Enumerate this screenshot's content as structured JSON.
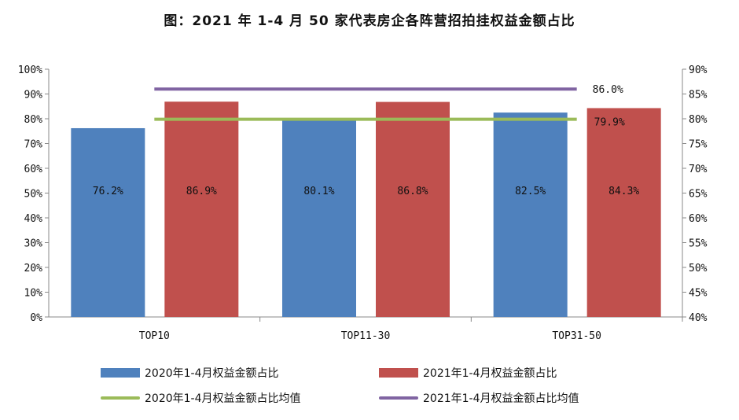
{
  "chart_data": {
    "type": "bar",
    "title": "图：2021 年 1-4 月 50 家代表房企各阵营招拍挂权益金额占比",
    "categories": [
      "TOP10",
      "TOP11-30",
      "TOP31-50"
    ],
    "series": [
      {
        "name": "2020年1-4月权益金额占比",
        "type": "bar",
        "axis": "left",
        "color": "#4f81bd",
        "values": [
          76.2,
          80.1,
          82.5
        ],
        "labels": [
          "76.2%",
          "80.1%",
          "82.5%"
        ]
      },
      {
        "name": "2021年1-4月权益金额占比",
        "type": "bar",
        "axis": "left",
        "color": "#c0504d",
        "values": [
          86.9,
          86.8,
          84.3
        ],
        "labels": [
          "86.9%",
          "86.8%",
          "84.3%"
        ]
      },
      {
        "name": "2020年1-4月权益金额占比均值",
        "type": "line",
        "axis": "right",
        "color": "#9bbb59",
        "value": 79.9,
        "label": "79.9%"
      },
      {
        "name": "2021年1-4月权益金额占比均值",
        "type": "line",
        "axis": "right",
        "color": "#8064a2",
        "value": 86.0,
        "label": "86.0%"
      }
    ],
    "ylim_left": [
      0,
      100
    ],
    "ylim_right": [
      40,
      90
    ],
    "yticks_left": [
      "0%",
      "10%",
      "20%",
      "30%",
      "40%",
      "50%",
      "60%",
      "70%",
      "80%",
      "90%",
      "100%"
    ],
    "yticks_right": [
      "40%",
      "45%",
      "50%",
      "55%",
      "60%",
      "65%",
      "70%",
      "75%",
      "80%",
      "85%",
      "90%"
    ],
    "grid": false,
    "legend_position": "bottom"
  }
}
